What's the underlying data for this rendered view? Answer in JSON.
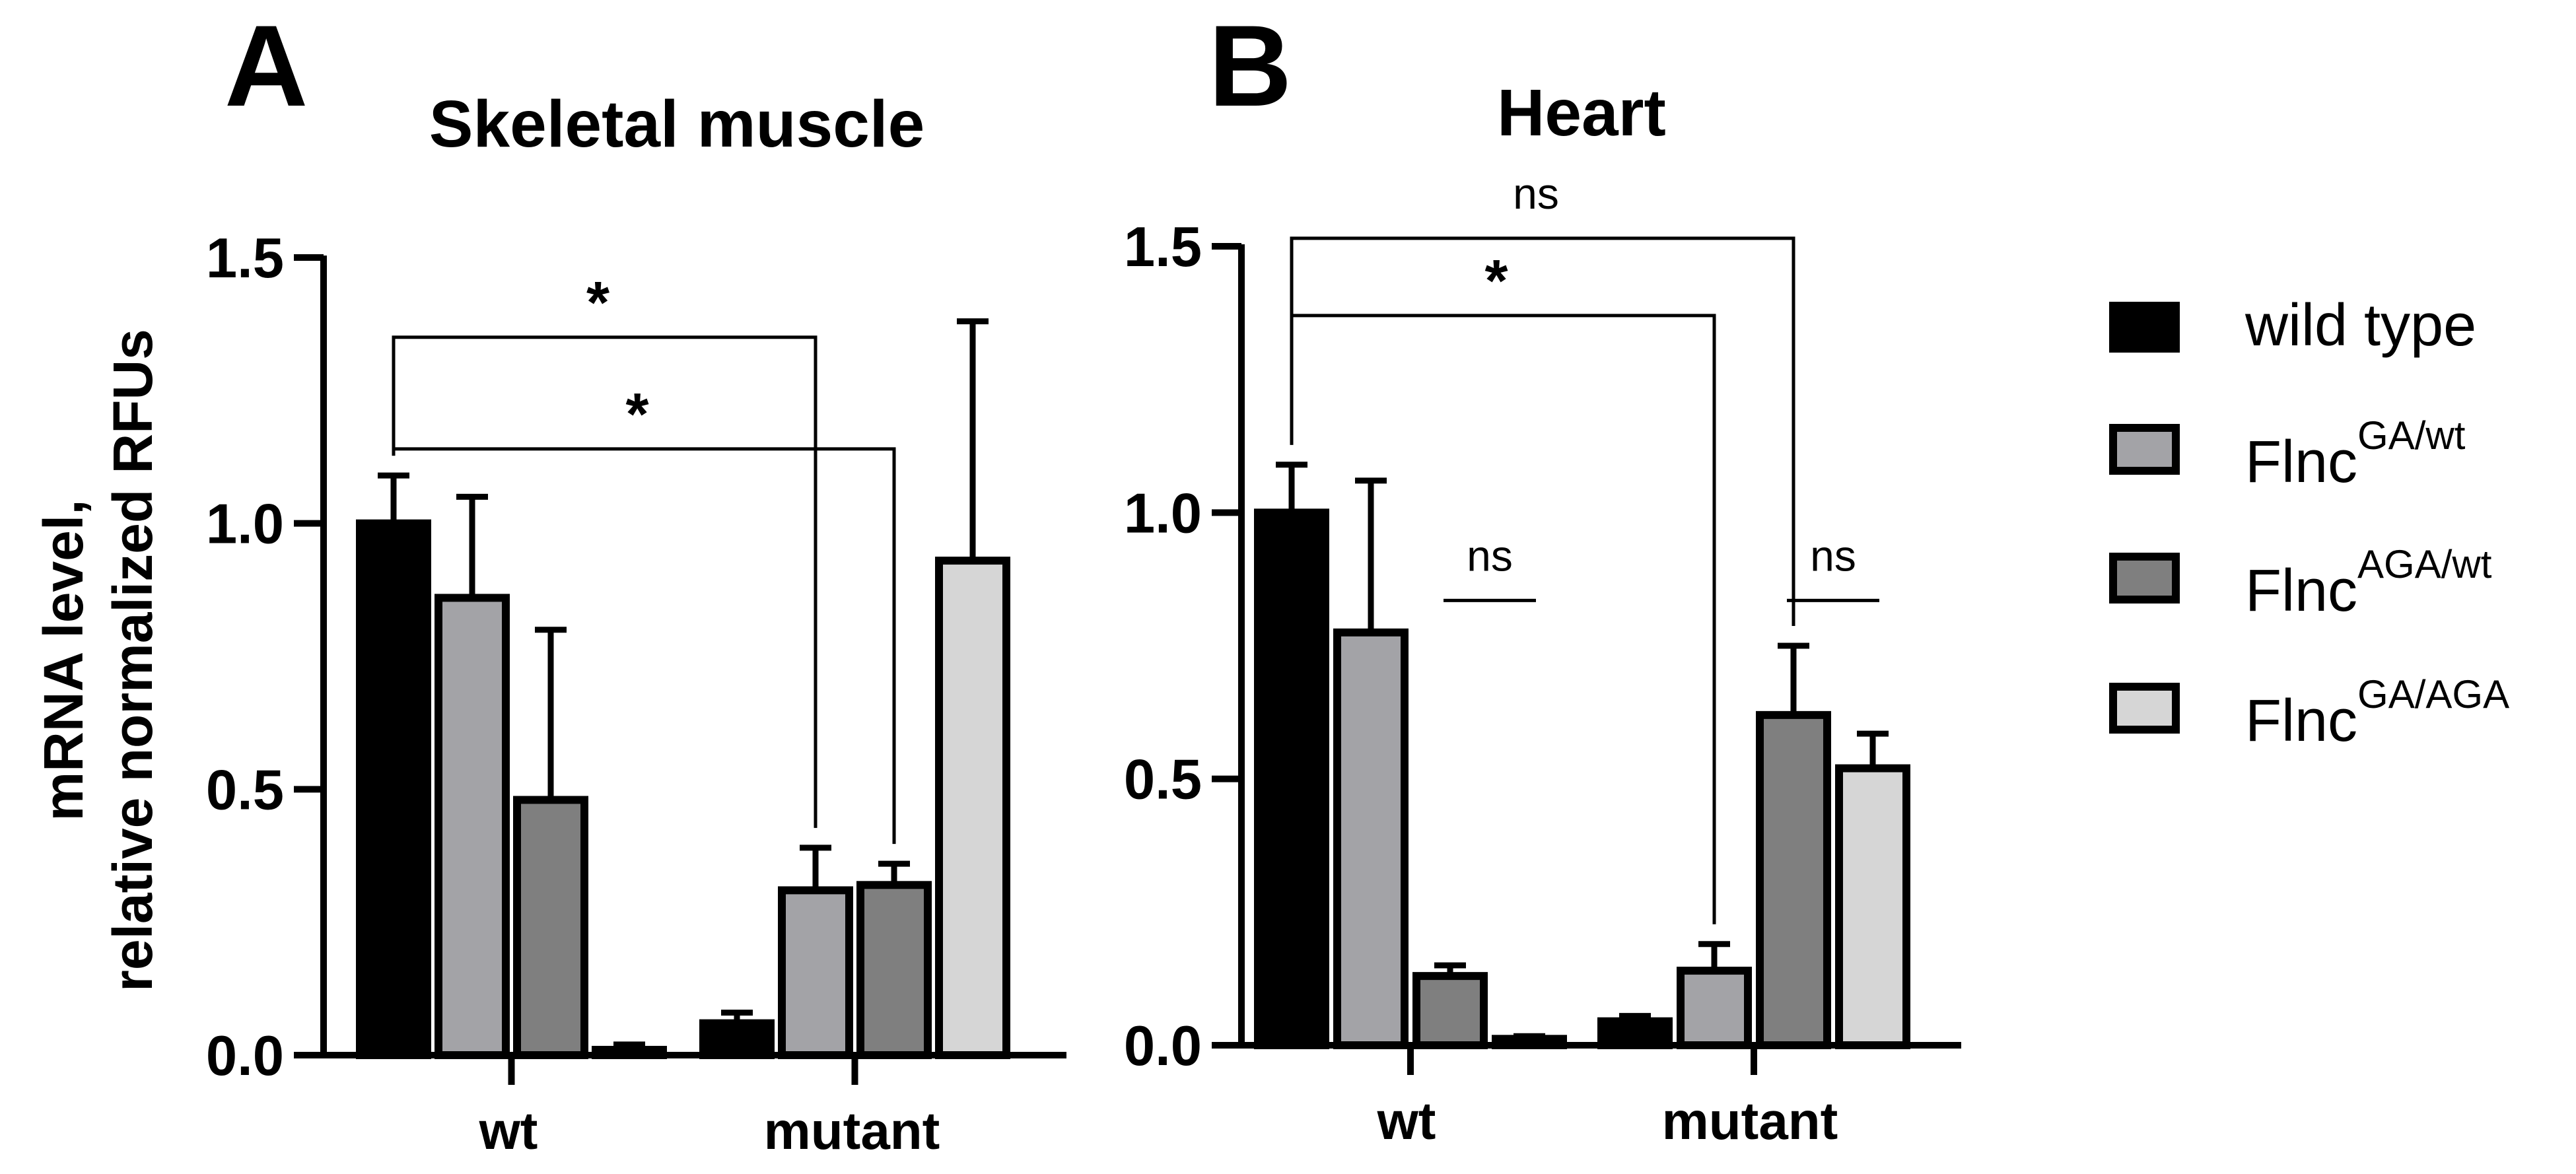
{
  "ylabel_line1": "mRNA level,",
  "ylabel_line2": "relative normalized RFUs",
  "legend": [
    {
      "name": "wild type",
      "sup": "",
      "color": "#000000"
    },
    {
      "name": "Flnc",
      "sup": "GA/wt",
      "color": "#a3a3a7"
    },
    {
      "name": "Flnc",
      "sup": "AGA/wt",
      "color": "#7f7f7f"
    },
    {
      "name": "Flnc",
      "sup": "GA/AGA",
      "color": "#d6d6d6"
    }
  ],
  "chart_data": [
    {
      "type": "bar",
      "panel_label": "A",
      "title": "Skeletal muscle",
      "groups": [
        "wt",
        "mutant"
      ],
      "ylim": [
        0,
        1.5
      ],
      "yticks": [
        "0.0",
        "0.5",
        "1.0",
        "1.5"
      ],
      "series": [
        {
          "name": "wild type",
          "values": [
            1.0,
            0.06
          ],
          "errors": [
            0.09,
            0.02
          ]
        },
        {
          "name": "FlncGA/wt",
          "values": [
            0.86,
            0.31
          ],
          "errors": [
            0.19,
            0.08
          ]
        },
        {
          "name": "FlncAGA/wt",
          "values": [
            0.48,
            0.32
          ],
          "errors": [
            0.32,
            0.04
          ]
        },
        {
          "name": "FlncGA/AGA",
          "values": [
            0.01,
            0.93
          ],
          "errors": [
            0.01,
            0.45
          ]
        }
      ],
      "annotations": [
        {
          "label": "*",
          "from": [
            0,
            0
          ],
          "to": [
            1,
            1
          ],
          "y": 1.35
        },
        {
          "label": "*",
          "from": [
            0,
            0
          ],
          "to": [
            1,
            2
          ],
          "y": 1.14
        }
      ]
    },
    {
      "type": "bar",
      "panel_label": "B",
      "title": "Heart",
      "groups": [
        "wt",
        "mutant"
      ],
      "ylim": [
        0,
        1.5
      ],
      "yticks": [
        "0.0",
        "0.5",
        "1.0",
        "1.5"
      ],
      "series": [
        {
          "name": "wild type",
          "values": [
            1.0,
            0.045
          ],
          "errors": [
            0.09,
            0.01
          ]
        },
        {
          "name": "FlncGA/wt",
          "values": [
            0.775,
            0.14
          ],
          "errors": [
            0.285,
            0.05
          ]
        },
        {
          "name": "FlncAGA/wt",
          "values": [
            0.13,
            0.62
          ],
          "errors": [
            0.02,
            0.13
          ]
        },
        {
          "name": "FlncGA/AGA",
          "values": [
            0.012,
            0.52
          ],
          "errors": [
            0.005,
            0.065
          ]
        }
      ],
      "annotations": [
        {
          "label": "ns",
          "from": [
            0,
            0
          ],
          "to": [
            1,
            2
          ],
          "y": 1.515
        },
        {
          "label": "*",
          "from": [
            0,
            0
          ],
          "to": [
            1,
            1
          ],
          "y": 1.37
        },
        {
          "label": "ns",
          "line": [
            0,
            2,
            0,
            3
          ],
          "y": 0.835
        },
        {
          "label": "ns",
          "line": [
            1,
            2,
            1,
            3
          ],
          "y": 0.835
        }
      ]
    }
  ]
}
